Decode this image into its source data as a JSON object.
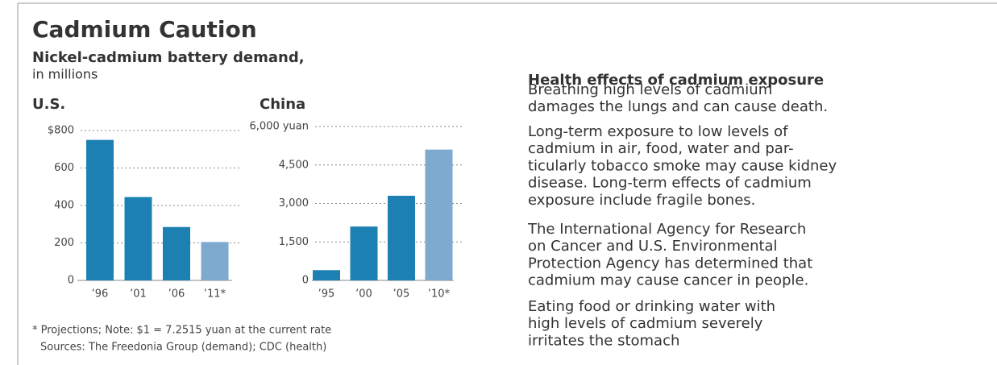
{
  "title": "Cadmium Caution",
  "subtitle": "Nickel-cadmium battery demand,",
  "units": "in millions",
  "chart_data": [
    {
      "type": "bar",
      "title": "U.S.",
      "categories": [
        "’96",
        "’01",
        "’06",
        "’11*"
      ],
      "values": [
        750,
        445,
        285,
        205
      ],
      "colors": [
        "#1d80b3",
        "#1d80b3",
        "#1d80b3",
        "#7eaad0"
      ],
      "ylim": [
        0,
        800
      ],
      "yticks": [
        0,
        200,
        400,
        600,
        {
          "value": 800,
          "label": "$800"
        }
      ],
      "grid": true
    },
    {
      "type": "bar",
      "title": "China",
      "categories": [
        "’95",
        "’00",
        "’05",
        "’10*"
      ],
      "values": [
        400,
        2100,
        3300,
        5100
      ],
      "colors": [
        "#1d80b3",
        "#1d80b3",
        "#1d80b3",
        "#7eaad0"
      ],
      "ylim": [
        0,
        6000
      ],
      "yticks": [
        0,
        {
          "value": 1500,
          "label": "1,500"
        },
        {
          "value": 3000,
          "label": "3,000"
        },
        {
          "value": 4500,
          "label": "4,500"
        },
        {
          "value": 6000,
          "label": "6,000 yuan"
        }
      ],
      "grid": true
    }
  ],
  "footnotes": [
    "* Projections; Note: $1 = 7.2515 yuan at the current rate",
    "Sources: The Freedonia Group (demand); CDC (health)"
  ],
  "health": {
    "title": "Health effects of cadmium exposure",
    "paragraphs": [
      [
        "Breathing high levels of cadmium",
        "damages the lungs and can cause death."
      ],
      [
        "Long-term exposure to low levels of",
        "cadmium in air, food, water and par-",
        "ticularly tobacco smoke may cause kidney",
        "disease. Long-term effects of cadmium",
        "exposure include fragile bones."
      ],
      [
        "The International Agency for Research",
        "on Cancer and U.S. Environmental",
        "Protection Agency has determined that",
        "cadmium may cause cancer in people."
      ],
      [
        "Eating food or drinking water with",
        "high levels of cadmium severely",
        "irritates the stomach"
      ]
    ]
  }
}
